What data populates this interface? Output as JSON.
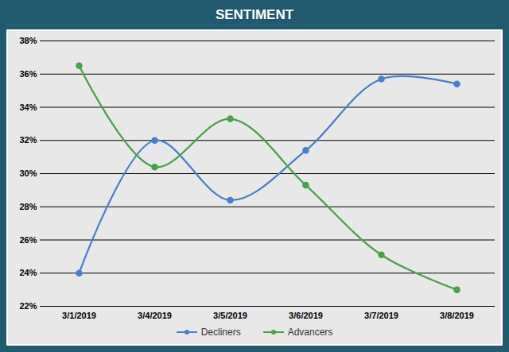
{
  "chart_data": {
    "type": "line",
    "title": "SENTIMENT",
    "categories": [
      "3/1/2019",
      "3/4/2019",
      "3/5/2019",
      "3/6/2019",
      "3/7/2019",
      "3/8/2019"
    ],
    "series": [
      {
        "name": "Decliners",
        "color": "#4a7ec6",
        "marker": "circle",
        "line_style": "solid",
        "values": [
          24.0,
          32.0,
          28.4,
          31.4,
          35.7,
          35.4
        ]
      },
      {
        "name": "Advancers",
        "color": "#4c9f4c",
        "marker": "circle",
        "line_style": "solid",
        "values": [
          36.5,
          30.4,
          33.3,
          29.3,
          25.1,
          23.0
        ]
      }
    ],
    "ylim": [
      22,
      38
    ],
    "yticks": [
      {
        "value": 22,
        "label": "22%"
      },
      {
        "value": 24,
        "label": "24%"
      },
      {
        "value": 26,
        "label": "26%"
      },
      {
        "value": 28,
        "label": "28%"
      },
      {
        "value": 30,
        "label": "30%"
      },
      {
        "value": 32,
        "label": "32%"
      },
      {
        "value": 34,
        "label": "34%"
      },
      {
        "value": 36,
        "label": "36%"
      },
      {
        "value": 38,
        "label": "38%"
      }
    ],
    "grid": true,
    "legend": "bottom"
  }
}
